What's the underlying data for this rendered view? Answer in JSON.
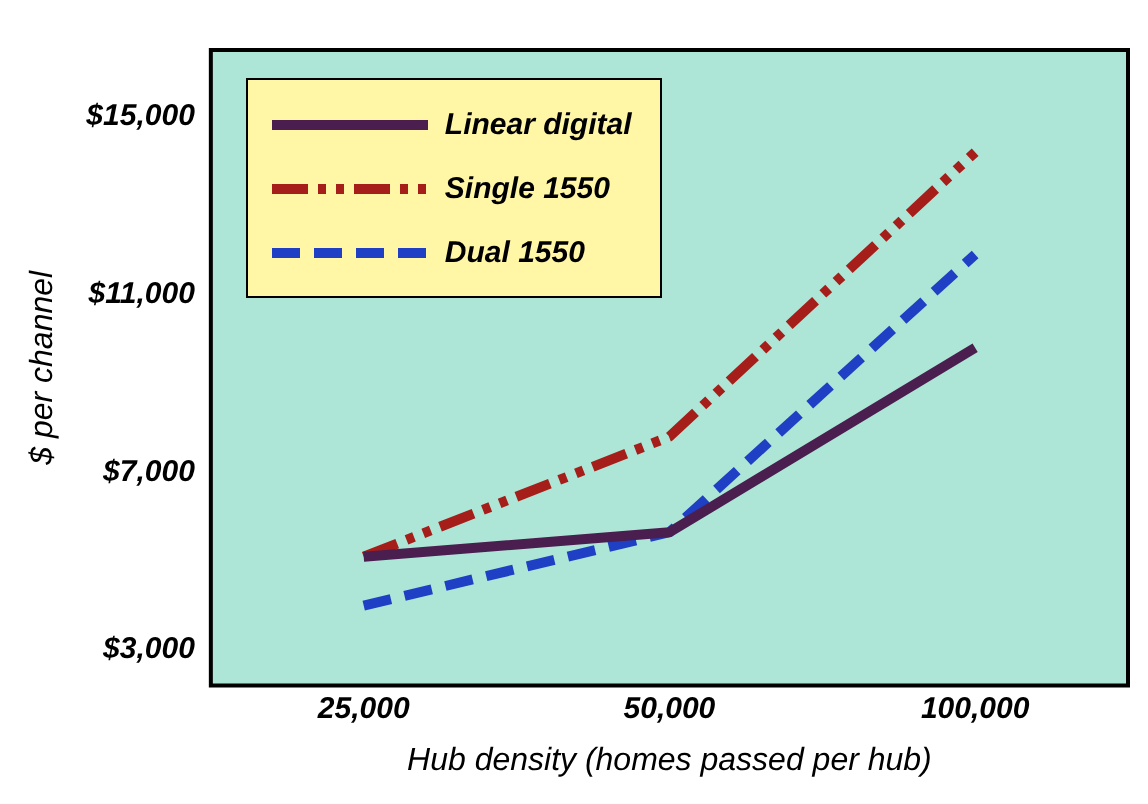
{
  "chart_data": {
    "type": "line",
    "xlabel": "Hub density (homes passed per hub)",
    "ylabel": "$ per channel",
    "categories": [
      "25,000",
      "50,000",
      "100,000"
    ],
    "series": [
      {
        "name": "Linear digital",
        "color": "#4a1f4f",
        "values": [
          5100,
          5650,
          9800
        ],
        "line_style": "solid"
      },
      {
        "name": "Single 1550",
        "color": "#a61e1a",
        "values": [
          5100,
          7800,
          14200
        ],
        "line_style": "dashdot"
      },
      {
        "name": "Dual 1550",
        "color": "#1f3fc4",
        "values": [
          4000,
          5650,
          11900
        ],
        "line_style": "dashed"
      }
    ],
    "ylim": [
      2200,
      16500
    ],
    "yticks": [
      {
        "value": 3000,
        "label": "$3,000"
      },
      {
        "value": 7000,
        "label": "$7,000"
      },
      {
        "value": 11000,
        "label": "$11,000"
      },
      {
        "value": 15000,
        "label": "$15,000"
      }
    ],
    "grid": false,
    "legend": "top left",
    "marker": "none"
  }
}
